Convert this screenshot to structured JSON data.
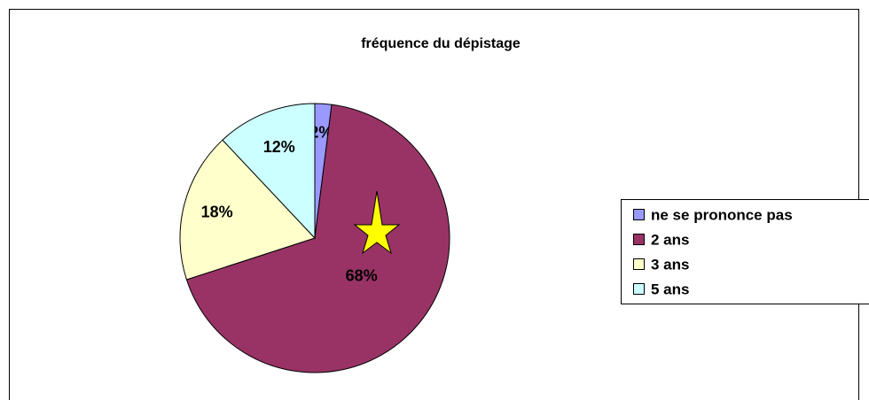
{
  "chart_data": {
    "type": "pie",
    "title": "fréquence du dépistage",
    "categories": [
      "ne se prononce pas",
      "2 ans",
      "3 ans",
      "5 ans"
    ],
    "values": [
      2,
      68,
      18,
      12
    ],
    "value_labels": [
      "2%",
      "68%",
      "18%",
      "12%"
    ],
    "colors": [
      "#9999ff",
      "#993366",
      "#ffffcc",
      "#ccffff"
    ],
    "legend": "right"
  }
}
